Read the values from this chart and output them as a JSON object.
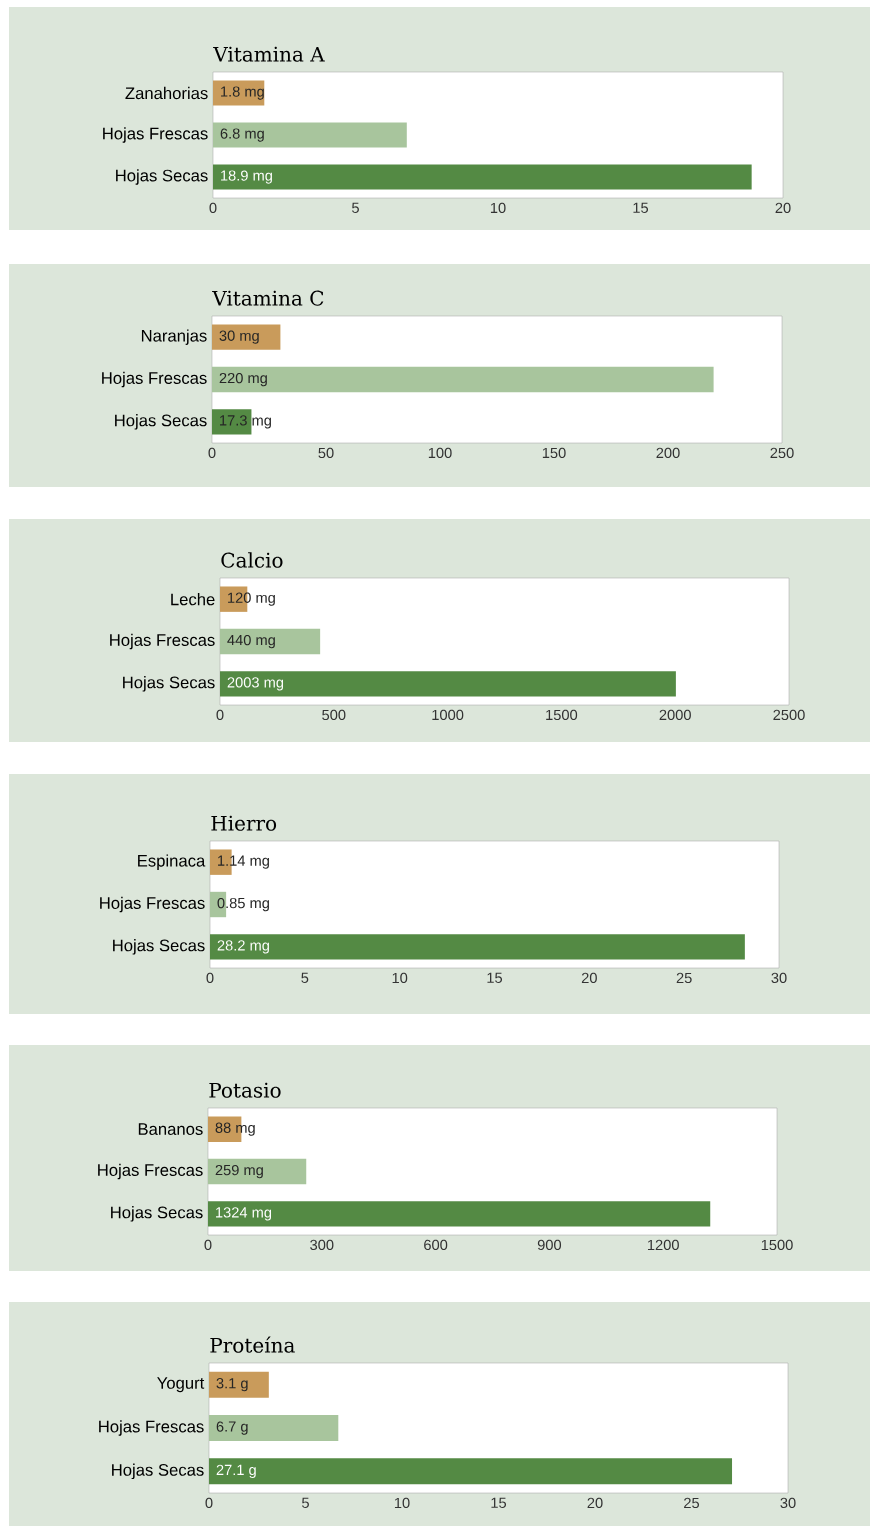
{
  "chart_data": [
    {
      "type": "bar",
      "orientation": "horizontal",
      "title": "Vitamina A",
      "categories": [
        "Zanahorias",
        "Hojas Frescas",
        "Hojas Secas"
      ],
      "values": [
        1.8,
        6.8,
        18.9
      ],
      "colors": [
        "#c99b5b",
        "#a8c59d",
        "#548a44"
      ],
      "value_labels": [
        "1.8 mg",
        "6.8 mg",
        "18.9 mg"
      ],
      "xlim": [
        0,
        20
      ],
      "xticks": [
        0,
        5,
        10,
        15,
        20
      ]
    },
    {
      "type": "bar",
      "orientation": "horizontal",
      "title": "Vitamina C",
      "categories": [
        "Naranjas",
        "Hojas Frescas",
        "Hojas Secas"
      ],
      "values": [
        30,
        220,
        17.3
      ],
      "colors": [
        "#c99b5b",
        "#a8c59d",
        "#548a44"
      ],
      "value_labels": [
        "30 mg",
        "220 mg",
        "17.3 mg"
      ],
      "xlim": [
        0,
        250
      ],
      "xticks": [
        0,
        50,
        100,
        150,
        200,
        250
      ]
    },
    {
      "type": "bar",
      "orientation": "horizontal",
      "title": "Calcio",
      "categories": [
        "Leche",
        "Hojas Frescas",
        "Hojas Secas"
      ],
      "values": [
        120,
        440,
        2003
      ],
      "colors": [
        "#c99b5b",
        "#a8c59d",
        "#548a44"
      ],
      "value_labels": [
        "120 mg",
        "440 mg",
        "2003 mg"
      ],
      "xlim": [
        0,
        2500
      ],
      "xticks": [
        0,
        500,
        1000,
        1500,
        2000,
        2500
      ]
    },
    {
      "type": "bar",
      "orientation": "horizontal",
      "title": "Hierro",
      "categories": [
        "Espinaca",
        "Hojas Frescas",
        "Hojas Secas"
      ],
      "values": [
        1.14,
        0.85,
        28.2
      ],
      "colors": [
        "#c99b5b",
        "#a8c59d",
        "#548a44"
      ],
      "value_labels": [
        "1.14 mg",
        "0.85 mg",
        "28.2 mg"
      ],
      "xlim": [
        0,
        30
      ],
      "xticks": [
        0,
        5,
        10,
        15,
        20,
        25,
        30
      ]
    },
    {
      "type": "bar",
      "orientation": "horizontal",
      "title": "Potasio",
      "categories": [
        "Bananos",
        "Hojas Frescas",
        "Hojas Secas"
      ],
      "values": [
        88,
        259,
        1324
      ],
      "colors": [
        "#c99b5b",
        "#a8c59d",
        "#548a44"
      ],
      "value_labels": [
        "88 mg",
        "259 mg",
        "1324 mg"
      ],
      "xlim": [
        0,
        1500
      ],
      "xticks": [
        0,
        300,
        600,
        900,
        1200,
        1500
      ]
    },
    {
      "type": "bar",
      "orientation": "horizontal",
      "title": "Proteína",
      "categories": [
        "Yogurt",
        "Hojas Frescas",
        "Hojas Secas"
      ],
      "values": [
        3.1,
        6.7,
        27.1
      ],
      "colors": [
        "#c99b5b",
        "#a8c59d",
        "#548a44"
      ],
      "value_labels": [
        "3.1 g",
        "6.7 g",
        "27.1 g"
      ],
      "xlim": [
        0,
        30
      ],
      "xticks": [
        0,
        5,
        10,
        15,
        20,
        25,
        30
      ]
    }
  ]
}
